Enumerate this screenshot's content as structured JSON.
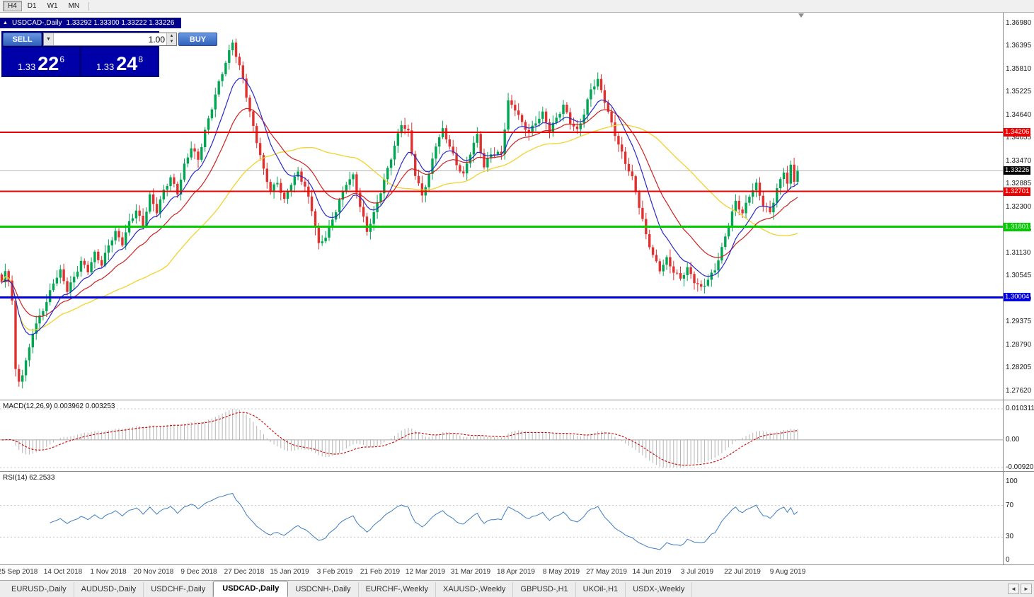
{
  "toolbar": {
    "timeframes": [
      {
        "label": "H4",
        "active": true
      },
      {
        "label": "D1",
        "active": false
      },
      {
        "label": "W1",
        "active": false
      },
      {
        "label": "MN",
        "active": false
      }
    ]
  },
  "chart_header": {
    "symbol": "USDCAD-,Daily",
    "ohlc": "1.33292 1.33300 1.33222 1.33226"
  },
  "trade_panel": {
    "sell_label": "SELL",
    "buy_label": "BUY",
    "volume": "1.00",
    "sell": {
      "prefix": "1.33",
      "big": "22",
      "sup": "6"
    },
    "buy": {
      "prefix": "1.33",
      "big": "24",
      "sup": "8"
    }
  },
  "indicators": {
    "macd": {
      "label": "MACD(12,26,9) 0.003962 0.003253",
      "scale": [
        "0.010311",
        "0.00",
        "-0.0092033"
      ]
    },
    "rsi": {
      "label": "RSI(14) 62.2533",
      "scale": [
        "100",
        "70",
        "30",
        "0"
      ]
    }
  },
  "chart_data": {
    "type": "candlestick",
    "title": "USDCAD-,Daily",
    "symbol": "USDCAD",
    "period": "Daily",
    "bars": 232,
    "ylim": [
      1.274,
      1.3725
    ],
    "current_price": 1.33226,
    "y_axis": [
      "1.36980",
      "1.36395",
      "1.35810",
      "1.35225",
      "1.34640",
      "1.34055",
      "1.33470",
      "1.32885",
      "1.32300",
      "1.31715",
      "1.31130",
      "1.30545",
      "1.29960",
      "1.29375",
      "1.28790",
      "1.28205",
      "1.27620"
    ],
    "x_axis": [
      "25 Sep 2018",
      "14 Oct 2018",
      "1 Nov 2018",
      "20 Nov 2018",
      "9 Dec 2018",
      "27 Dec 2018",
      "15 Jan 2019",
      "3 Feb 2019",
      "21 Feb 2019",
      "12 Mar 2019",
      "31 Mar 2019",
      "18 Apr 2019",
      "8 May 2019",
      "27 May 2019",
      "14 Jun 2019",
      "3 Jul 2019",
      "22 Jul 2019",
      "9 Aug 2019"
    ],
    "hlines": [
      {
        "price": 1.34206,
        "label": "1.34206",
        "color": "#ee0000",
        "width": 2
      },
      {
        "price": 1.32701,
        "label": "1.32701",
        "color": "#ee0000",
        "width": 2
      },
      {
        "price": 1.31801,
        "label": "1.31801",
        "color": "#00cc00",
        "width": 3
      },
      {
        "price": 1.30004,
        "label": "1.30004",
        "color": "#0000dd",
        "width": 3
      }
    ],
    "overlays": {
      "ma_fast": {
        "period": 10,
        "type": "ema",
        "color": "#2828c8"
      },
      "ma_mid": {
        "period": 21,
        "type": "ema",
        "color": "#cc2222"
      },
      "ma_slow": {
        "period": 45,
        "type": "sma",
        "color": "#f2d22e"
      }
    },
    "macd": {
      "fast": 12,
      "slow": 26,
      "signal": 9,
      "current_macd": 0.003962,
      "current_signal": 0.003253,
      "scale_max": 0.010311,
      "scale_min": -0.0092033
    },
    "rsi": {
      "period": 14,
      "current": 62.2533,
      "levels": [
        70,
        30
      ]
    },
    "colors": {
      "up": "#00a651",
      "down": "#e03131",
      "macd_hist": "#b4b4b4",
      "macd_signal": "#cc0000",
      "rsi": "#3f7cbf",
      "grid_dashed": "#c8c8c8",
      "current_line": "#b8b8b8"
    },
    "price_path": [
      [
        0,
        1.3035
      ],
      [
        1,
        1.306
      ],
      [
        2,
        1.3045
      ],
      [
        3,
        1.2995
      ],
      [
        4,
        1.2815
      ],
      [
        5,
        1.279
      ],
      [
        6,
        1.281
      ],
      [
        7,
        1.284
      ],
      [
        8,
        1.2875
      ],
      [
        9,
        1.2915
      ],
      [
        11,
        1.295
      ],
      [
        13,
        1.2985
      ],
      [
        15,
        1.3035
      ],
      [
        17,
        1.3065
      ],
      [
        19,
        1.302
      ],
      [
        21,
        1.3055
      ],
      [
        23,
        1.3095
      ],
      [
        25,
        1.307
      ],
      [
        27,
        1.311
      ],
      [
        29,
        1.308
      ],
      [
        31,
        1.313
      ],
      [
        33,
        1.3165
      ],
      [
        35,
        1.314
      ],
      [
        37,
        1.3195
      ],
      [
        39,
        1.3225
      ],
      [
        41,
        1.3185
      ],
      [
        43,
        1.3255
      ],
      [
        45,
        1.3215
      ],
      [
        47,
        1.327
      ],
      [
        49,
        1.3305
      ],
      [
        51,
        1.327
      ],
      [
        53,
        1.334
      ],
      [
        55,
        1.3385
      ],
      [
        57,
        1.335
      ],
      [
        59,
        1.342
      ],
      [
        61,
        1.348
      ],
      [
        63,
        1.3545
      ],
      [
        65,
        1.36
      ],
      [
        67,
        1.3655
      ],
      [
        68,
        1.362
      ],
      [
        70,
        1.356
      ],
      [
        72,
        1.347
      ],
      [
        74,
        1.3395
      ],
      [
        76,
        1.332
      ],
      [
        78,
        1.327
      ],
      [
        80,
        1.3295
      ],
      [
        82,
        1.325
      ],
      [
        84,
        1.3295
      ],
      [
        86,
        1.332
      ],
      [
        88,
        1.328
      ],
      [
        90,
        1.322
      ],
      [
        92,
        1.313
      ],
      [
        94,
        1.3155
      ],
      [
        96,
        1.32
      ],
      [
        98,
        1.325
      ],
      [
        100,
        1.3295
      ],
      [
        102,
        1.331
      ],
      [
        104,
        1.323
      ],
      [
        106,
        1.3165
      ],
      [
        108,
        1.321
      ],
      [
        110,
        1.327
      ],
      [
        112,
        1.333
      ],
      [
        114,
        1.339
      ],
      [
        116,
        1.3445
      ],
      [
        118,
        1.342
      ],
      [
        120,
        1.331
      ],
      [
        122,
        1.3255
      ],
      [
        124,
        1.331
      ],
      [
        126,
        1.339
      ],
      [
        128,
        1.343
      ],
      [
        130,
        1.339
      ],
      [
        132,
        1.334
      ],
      [
        134,
        1.331
      ],
      [
        136,
        1.3365
      ],
      [
        138,
        1.341
      ],
      [
        140,
        1.333
      ],
      [
        142,
        1.337
      ],
      [
        145,
        1.337
      ],
      [
        147,
        1.35
      ],
      [
        149,
        1.348
      ],
      [
        151,
        1.344
      ],
      [
        153,
        1.3415
      ],
      [
        155,
        1.3445
      ],
      [
        157,
        1.347
      ],
      [
        159,
        1.343
      ],
      [
        161,
        1.346
      ],
      [
        163,
        1.349
      ],
      [
        165,
        1.3445
      ],
      [
        167,
        1.342
      ],
      [
        169,
        1.3465
      ],
      [
        171,
        1.353
      ],
      [
        173,
        1.3555
      ],
      [
        175,
        1.3505
      ],
      [
        177,
        1.3445
      ],
      [
        179,
        1.339
      ],
      [
        181,
        1.334
      ],
      [
        183,
        1.33
      ],
      [
        185,
        1.323
      ],
      [
        187,
        1.316
      ],
      [
        189,
        1.311
      ],
      [
        191,
        1.3075
      ],
      [
        193,
        1.31
      ],
      [
        195,
        1.3065
      ],
      [
        197,
        1.3045
      ],
      [
        199,
        1.307
      ],
      [
        201,
        1.304
      ],
      [
        203,
        1.3025
      ],
      [
        205,
        1.305
      ],
      [
        207,
        1.3075
      ],
      [
        209,
        1.3125
      ],
      [
        211,
        1.3185
      ],
      [
        213,
        1.324
      ],
      [
        215,
        1.321
      ],
      [
        217,
        1.326
      ],
      [
        219,
        1.329
      ],
      [
        221,
        1.324
      ],
      [
        223,
        1.322
      ],
      [
        225,
        1.3275
      ],
      [
        227,
        1.332
      ],
      [
        228,
        1.3285
      ],
      [
        229,
        1.333
      ],
      [
        230,
        1.3295
      ],
      [
        231,
        1.33226
      ]
    ]
  },
  "tabs": [
    {
      "label": "EURUSD-,Daily",
      "active": false
    },
    {
      "label": "AUDUSD-,Daily",
      "active": false
    },
    {
      "label": "USDCHF-,Daily",
      "active": false
    },
    {
      "label": "USDCAD-,Daily",
      "active": true
    },
    {
      "label": "USDCNH-,Daily",
      "active": false
    },
    {
      "label": "EURCHF-,Weekly",
      "active": false
    },
    {
      "label": "XAUUSD-,Weekly",
      "active": false
    },
    {
      "label": "GBPUSD-,H1",
      "active": false
    },
    {
      "label": "UKOil-,H1",
      "active": false
    },
    {
      "label": "USDX-,Weekly",
      "active": false
    }
  ],
  "tab_nav": {
    "left": "◄",
    "right": "►"
  }
}
